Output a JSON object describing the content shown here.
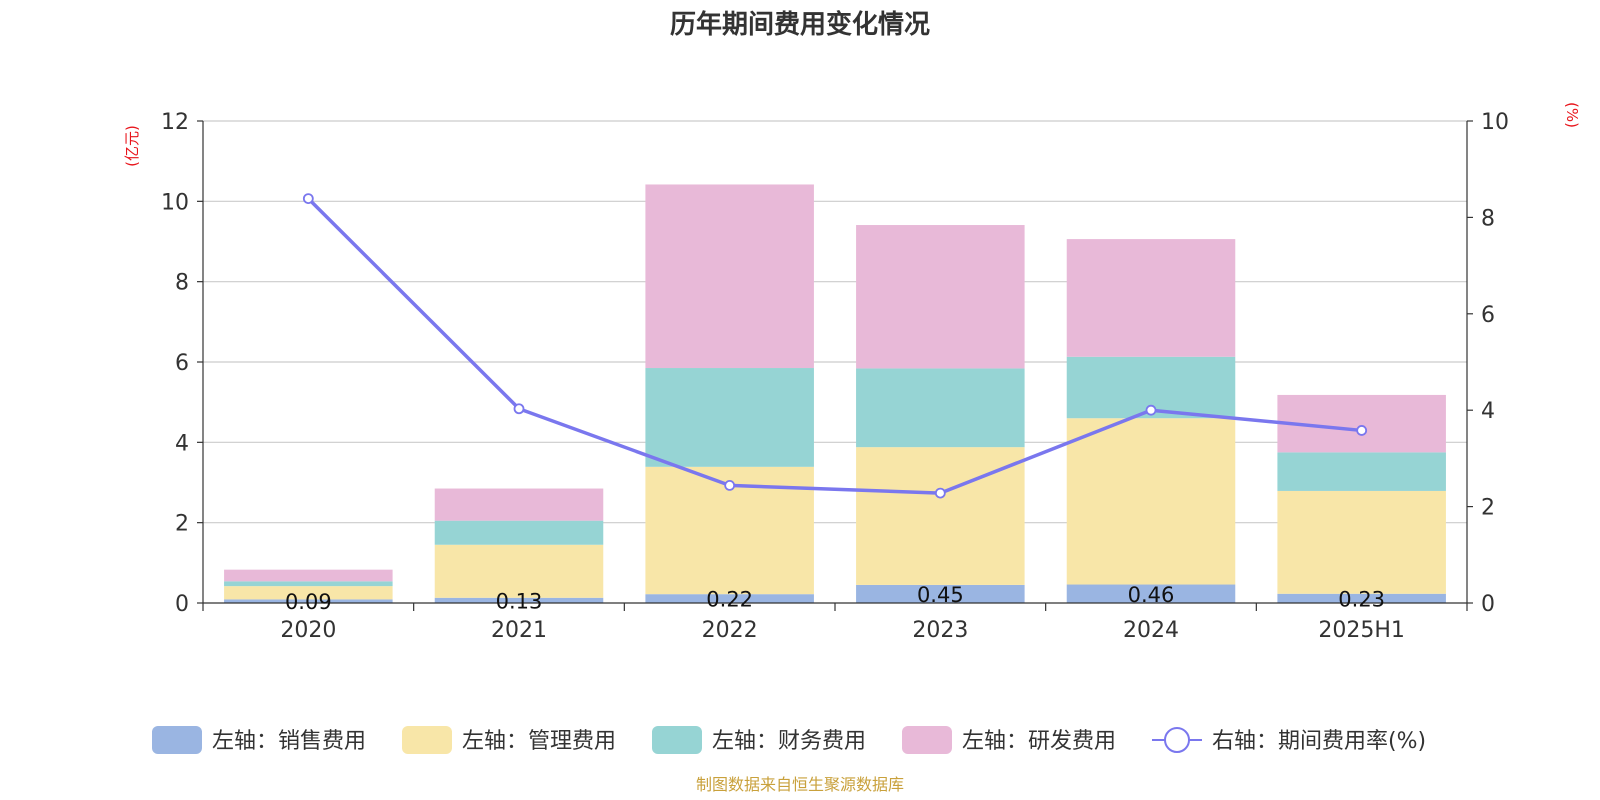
{
  "title": "历年期间费用变化情况",
  "source_note": "制图数据来自恒生聚源数据库",
  "colors": {
    "sales": "#9ab5e2",
    "admin": "#f8e6a8",
    "finance": "#96d4d4",
    "rnd": "#e8b9d8",
    "rate_line": "#7a77ee",
    "unit_text": "#e8141b",
    "source_text": "#c9a13c"
  },
  "legend": {
    "sales": "左轴：销售费用",
    "admin": "左轴：管理费用",
    "finance": "左轴：财务费用",
    "rnd": "左轴：研发费用",
    "rate": "右轴：期间费用率(%)"
  },
  "chart_data": {
    "type": "bar",
    "stacked": true,
    "categories": [
      "2020",
      "2021",
      "2022",
      "2023",
      "2024",
      "2025H1"
    ],
    "left_axis": {
      "unit_label": "(亿元)",
      "ylim": [
        0,
        12
      ],
      "ticks": [
        0,
        2,
        4,
        6,
        8,
        10,
        12
      ]
    },
    "right_axis": {
      "unit_label": "(%)",
      "ylim": [
        0,
        10
      ],
      "ticks": [
        0,
        2,
        4,
        6,
        8,
        10
      ]
    },
    "grid": true,
    "legend_position": "bottom",
    "series": [
      {
        "key": "sales",
        "name": "左轴：销售费用",
        "axis": "left",
        "type": "bar",
        "values": [
          0.09,
          0.13,
          0.22,
          0.45,
          0.46,
          0.23
        ],
        "labels": [
          "0.09",
          "0.13",
          "0.22",
          "0.45",
          "0.46",
          "0.23"
        ]
      },
      {
        "key": "admin",
        "name": "左轴：管理费用",
        "axis": "left",
        "type": "bar",
        "values": [
          0.33,
          1.32,
          3.17,
          3.43,
          4.14,
          2.56
        ]
      },
      {
        "key": "finance",
        "name": "左轴：财务费用",
        "axis": "left",
        "type": "bar",
        "values": [
          0.12,
          0.6,
          2.46,
          1.96,
          1.53,
          0.96
        ]
      },
      {
        "key": "rnd",
        "name": "左轴：研发费用",
        "axis": "left",
        "type": "bar",
        "values": [
          0.29,
          0.8,
          4.57,
          3.57,
          2.93,
          1.43
        ]
      },
      {
        "key": "rate",
        "name": "右轴：期间费用率(%)",
        "axis": "right",
        "type": "line",
        "values": [
          8.39,
          4.03,
          2.44,
          2.28,
          4.0,
          3.58
        ]
      }
    ]
  }
}
